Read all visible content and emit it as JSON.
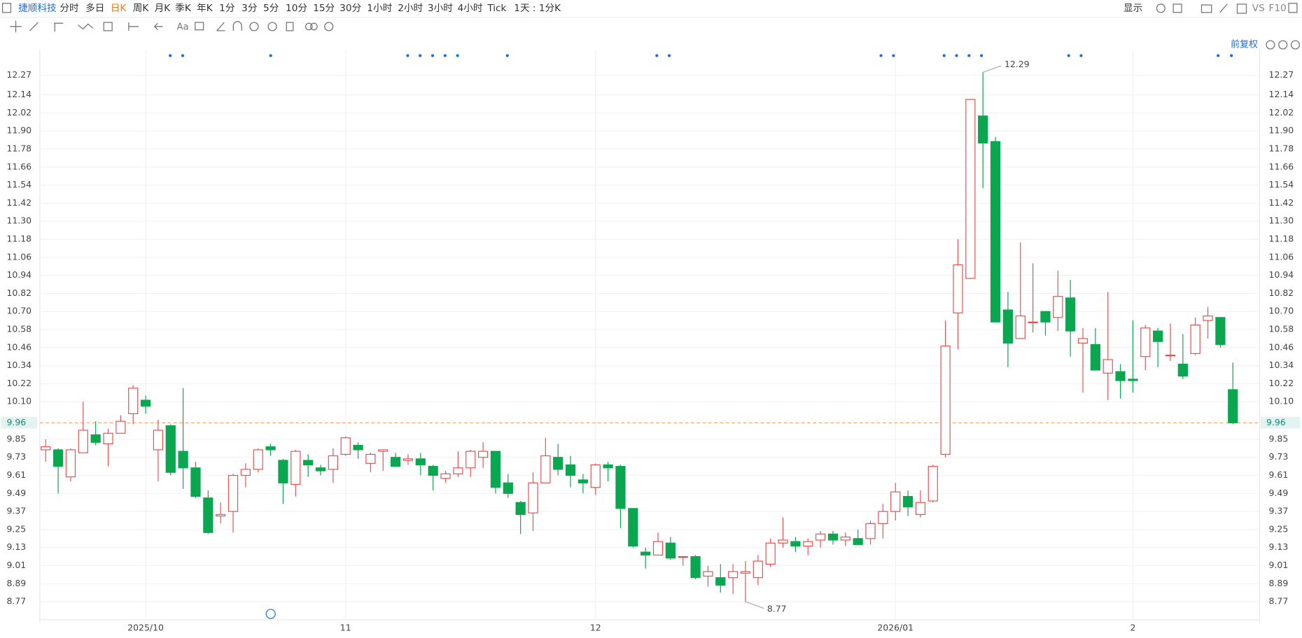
{
  "toolbar": {
    "stock": "捷顺科技",
    "periods": [
      "分时",
      "多日",
      "日K",
      "周K",
      "月K",
      "季K",
      "年K",
      "1分",
      "3分",
      "5分",
      "10分",
      "15分",
      "30分",
      "1小时",
      "2小时",
      "3小时",
      "4小时",
      "Tick",
      "1天 : 1分K"
    ],
    "right": [
      "显示",
      "VS",
      "F10"
    ]
  },
  "adjust": "前复权",
  "chart_data": {
    "type": "candlestick",
    "title": "捷顺科技",
    "categories": [
      null,
      null,
      null,
      null,
      null,
      null,
      null,
      null,
      "2025/10",
      null,
      null,
      null,
      null,
      null,
      null,
      null,
      null,
      null,
      null,
      null,
      null,
      null,
      null,
      null,
      "11",
      null,
      null,
      null,
      null,
      null,
      null,
      null,
      null,
      null,
      null,
      null,
      null,
      null,
      null,
      null,
      null,
      null,
      null,
      null,
      "12",
      null,
      null,
      null,
      null,
      null,
      null,
      null,
      null,
      null,
      null,
      null,
      null,
      null,
      null,
      null,
      null,
      null,
      null,
      null,
      null,
      null,
      null,
      null,
      "2026/01",
      null,
      null,
      null,
      null,
      null,
      null,
      null,
      null,
      null,
      null,
      null,
      null,
      null,
      null,
      null,
      null,
      null,
      null,
      "2",
      null,
      null,
      null,
      null,
      null,
      null,
      null,
      null
    ],
    "open": [
      9.78,
      9.78,
      9.6,
      9.76,
      9.88,
      9.82,
      9.89,
      10.02,
      10.11,
      9.78,
      9.94,
      9.77,
      9.66,
      9.46,
      9.34,
      9.37,
      9.61,
      9.65,
      9.8,
      9.71,
      9.55,
      9.71,
      9.66,
      9.65,
      9.75,
      9.81,
      9.69,
      9.77,
      9.73,
      9.71,
      9.72,
      9.67,
      9.59,
      9.62,
      9.66,
      9.73,
      9.77,
      9.56,
      9.43,
      9.36,
      9.56,
      9.73,
      9.68,
      9.58,
      9.53,
      9.68,
      9.67,
      9.39,
      9.1,
      9.08,
      9.16,
      9.07,
      9.07,
      8.94,
      8.93,
      8.93,
      8.96,
      8.93,
      9.02,
      9.16,
      9.17,
      9.14,
      9.18,
      9.22,
      9.18,
      9.19,
      9.19,
      9.29,
      9.37,
      9.47,
      9.35,
      9.44,
      9.75,
      10.69,
      10.92,
      12.0,
      11.83,
      10.71,
      10.52,
      10.63,
      10.7,
      10.66,
      10.79,
      10.49,
      10.48,
      10.29,
      10.3,
      10.25,
      10.4,
      10.57,
      10.41,
      10.35,
      10.42,
      10.64,
      10.66,
      10.18
    ],
    "high": [
      9.85,
      9.79,
      9.79,
      10.1,
      9.97,
      9.92,
      10.01,
      10.21,
      10.14,
      9.98,
      9.95,
      10.19,
      9.7,
      9.51,
      9.43,
      9.62,
      9.69,
      9.79,
      9.82,
      9.72,
      9.78,
      9.75,
      9.68,
      9.79,
      9.87,
      9.83,
      9.76,
      9.78,
      9.76,
      9.75,
      9.76,
      9.68,
      9.64,
      9.77,
      9.78,
      9.83,
      9.77,
      9.62,
      9.44,
      9.63,
      9.86,
      9.82,
      9.74,
      9.62,
      9.69,
      9.7,
      9.68,
      9.39,
      9.13,
      9.23,
      9.2,
      9.07,
      9.08,
      9.01,
      9.02,
      9.02,
      9.04,
      9.08,
      9.19,
      9.33,
      9.2,
      9.19,
      9.24,
      9.24,
      9.23,
      9.25,
      9.31,
      9.42,
      9.56,
      9.51,
      9.51,
      9.68,
      10.64,
      11.18,
      12.11,
      12.29,
      11.86,
      10.83,
      11.16,
      11.02,
      10.7,
      10.97,
      10.91,
      10.59,
      10.59,
      10.83,
      10.35,
      10.64,
      10.61,
      10.59,
      10.62,
      10.55,
      10.66,
      10.73,
      10.66,
      10.36
    ],
    "low": [
      9.7,
      9.49,
      9.57,
      9.76,
      9.81,
      9.67,
      9.89,
      9.95,
      10.02,
      9.57,
      9.61,
      9.52,
      9.46,
      9.22,
      9.29,
      9.23,
      9.53,
      9.63,
      9.74,
      9.42,
      9.47,
      9.6,
      9.61,
      9.56,
      9.74,
      9.72,
      9.63,
      9.64,
      9.67,
      9.68,
      9.61,
      9.51,
      9.56,
      9.6,
      9.6,
      9.66,
      9.49,
      9.46,
      9.22,
      9.24,
      9.56,
      9.61,
      9.53,
      9.49,
      9.48,
      9.57,
      9.26,
      9.13,
      8.99,
      9.08,
      9.05,
      9.01,
      8.92,
      8.87,
      8.83,
      8.82,
      8.77,
      8.88,
      9.0,
      9.13,
      9.1,
      9.08,
      9.13,
      9.15,
      9.14,
      9.15,
      9.15,
      9.19,
      9.31,
      9.34,
      9.33,
      9.43,
      9.73,
      10.45,
      10.92,
      11.52,
      10.63,
      10.33,
      10.52,
      10.56,
      10.54,
      10.57,
      10.4,
      10.16,
      10.31,
      10.11,
      10.12,
      10.16,
      10.31,
      10.33,
      10.37,
      10.25,
      10.41,
      10.52,
      10.46,
      9.95
    ],
    "close": [
      9.8,
      9.67,
      9.78,
      9.91,
      9.83,
      9.89,
      9.97,
      10.19,
      10.07,
      9.91,
      9.63,
      9.66,
      9.47,
      9.23,
      9.35,
      9.61,
      9.65,
      9.78,
      9.78,
      9.56,
      9.77,
      9.68,
      9.64,
      9.74,
      9.86,
      9.78,
      9.75,
      9.78,
      9.67,
      9.72,
      9.68,
      9.61,
      9.62,
      9.66,
      9.77,
      9.77,
      9.53,
      9.49,
      9.35,
      9.56,
      9.74,
      9.65,
      9.61,
      9.56,
      9.68,
      9.66,
      9.39,
      9.14,
      9.08,
      9.17,
      9.06,
      9.07,
      8.93,
      8.97,
      8.88,
      8.97,
      8.97,
      9.04,
      9.16,
      9.18,
      9.14,
      9.17,
      9.22,
      9.18,
      9.2,
      9.15,
      9.29,
      9.37,
      9.5,
      9.4,
      9.43,
      9.67,
      10.47,
      11.01,
      12.11,
      11.82,
      10.63,
      10.49,
      10.67,
      10.63,
      10.63,
      10.8,
      10.57,
      10.52,
      10.31,
      10.38,
      10.24,
      10.24,
      10.59,
      10.5,
      10.41,
      10.27,
      10.61,
      10.67,
      10.48,
      9.96
    ],
    "up_color": "#e8504f",
    "down_color": "#0aa650",
    "ylim": [
      8.65,
      12.44
    ],
    "yticks": [
      12.27,
      12.14,
      12.02,
      {
        "value": 11.9,
        "label": "11.90"
      },
      11.78,
      11.66,
      11.54,
      11.42,
      {
        "value": 11.3,
        "label": "11.30"
      },
      11.18,
      11.06,
      10.94,
      10.82,
      {
        "value": 10.7,
        "label": "10.70"
      },
      10.58,
      10.46,
      10.34,
      10.22,
      {
        "value": 10.1,
        "label": "10.10"
      },
      9.85,
      9.73,
      9.61,
      9.49,
      9.37,
      9.25,
      9.13,
      9.01,
      8.89,
      8.77
    ],
    "grid": true,
    "high_label": 12.29,
    "low_label": 8.77,
    "last_price": 9.96
  }
}
